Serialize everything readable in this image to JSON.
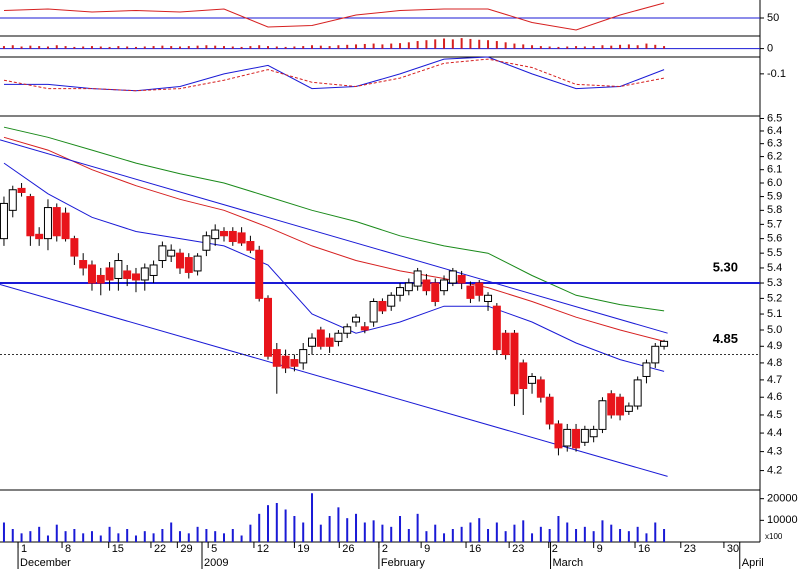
{
  "chart_data": {
    "type": "candlestick",
    "xlim": [
      -0.45,
      85.9
    ],
    "xticks": [
      {
        "value": 1.6,
        "label": "1"
      },
      {
        "value": 6.6,
        "label": "8"
      },
      {
        "value": 11.9,
        "label": "15"
      },
      {
        "value": 16.7,
        "label": "22"
      },
      {
        "value": 19.7,
        "label": "29"
      },
      {
        "value": 23.2,
        "label": "5"
      },
      {
        "value": 28.4,
        "label": "12"
      },
      {
        "value": 33.0,
        "label": "19"
      },
      {
        "value": 38.1,
        "label": "26"
      },
      {
        "value": 42.6,
        "label": "2"
      },
      {
        "value": 47.4,
        "label": "9"
      },
      {
        "value": 52.5,
        "label": "16"
      },
      {
        "value": 57.4,
        "label": "23"
      },
      {
        "value": 61.9,
        "label": "2"
      },
      {
        "value": 67.0,
        "label": "9"
      },
      {
        "value": 71.7,
        "label": "16"
      },
      {
        "value": 76.9,
        "label": "23"
      },
      {
        "value": 81.8,
        "label": "30"
      }
    ],
    "months": [
      {
        "value": 1.6,
        "label": "December"
      },
      {
        "value": 22.5,
        "label": "2009"
      },
      {
        "value": 42.6,
        "label": "February"
      },
      {
        "value": 62.1,
        "label": "March"
      },
      {
        "value": 83.6,
        "label": "April"
      }
    ],
    "price": {
      "log": true,
      "ylim": [
        4.1,
        6.52
      ],
      "yticks": [
        4.2,
        4.3,
        4.4,
        4.5,
        4.6,
        4.7,
        4.8,
        4.9,
        {
          "value": 5,
          "label": "5.0"
        },
        5.1,
        5.2,
        5.3,
        5.4,
        5.5,
        5.6,
        5.7,
        5.8,
        5.9,
        {
          "value": 6,
          "label": "6.0"
        },
        6.1,
        6.2,
        6.3,
        6.4,
        6.5
      ],
      "up_color": "#ffffff",
      "down_color": "#e8141b",
      "open": [
        5.6,
        5.8,
        5.96,
        5.9,
        5.63,
        5.6,
        5.82,
        5.78,
        5.6,
        5.45,
        5.42,
        5.35,
        5.4,
        5.33,
        5.38,
        5.36,
        5.32,
        5.35,
        5.45,
        5.48,
        5.5,
        5.47,
        5.38,
        5.52,
        5.6,
        5.65,
        5.65,
        5.64,
        5.58,
        5.52,
        5.2,
        4.88,
        4.84,
        4.82,
        4.8,
        4.9,
        5.0,
        4.95,
        4.93,
        4.98,
        5.05,
        5.02,
        5.05,
        5.18,
        5.15,
        5.22,
        5.25,
        5.28,
        5.32,
        5.3,
        5.25,
        5.3,
        5.35,
        5.28,
        5.3,
        5.18,
        5.15,
        4.98,
        4.98,
        4.8,
        4.68,
        4.7,
        4.6,
        4.45,
        4.33,
        4.42,
        4.35,
        4.38,
        4.42,
        4.62,
        4.6,
        4.52,
        4.55,
        4.72,
        4.8,
        4.9
      ],
      "high": [
        5.9,
        5.98,
        6.0,
        5.92,
        5.68,
        5.88,
        5.85,
        5.82,
        5.62,
        5.5,
        5.45,
        5.4,
        5.44,
        5.5,
        5.42,
        5.4,
        5.43,
        5.45,
        5.58,
        5.56,
        5.53,
        5.5,
        5.5,
        5.65,
        5.7,
        5.68,
        5.68,
        5.68,
        5.62,
        5.55,
        5.22,
        4.92,
        4.88,
        4.85,
        4.92,
        4.98,
        5.02,
        4.98,
        5.0,
        5.04,
        5.1,
        5.05,
        5.2,
        5.2,
        5.24,
        5.3,
        5.33,
        5.4,
        5.36,
        5.33,
        5.35,
        5.4,
        5.38,
        5.31,
        5.32,
        5.24,
        5.17,
        5.0,
        5.0,
        4.82,
        4.74,
        4.72,
        4.62,
        4.47,
        4.45,
        4.45,
        4.44,
        4.44,
        4.6,
        4.64,
        4.62,
        4.57,
        4.72,
        4.82,
        4.92,
        4.94
      ],
      "low": [
        5.55,
        5.75,
        5.9,
        5.55,
        5.55,
        5.52,
        5.58,
        5.58,
        5.42,
        5.35,
        5.25,
        5.22,
        5.25,
        5.25,
        5.28,
        5.24,
        5.25,
        5.3,
        5.4,
        5.44,
        5.36,
        5.33,
        5.35,
        5.48,
        5.55,
        5.58,
        5.55,
        5.55,
        5.5,
        5.18,
        4.82,
        4.62,
        4.74,
        4.75,
        4.76,
        4.85,
        4.88,
        4.86,
        4.9,
        4.95,
        5.02,
        4.98,
        5.02,
        5.1,
        5.12,
        5.18,
        5.22,
        5.25,
        5.22,
        5.15,
        5.22,
        5.28,
        5.26,
        5.17,
        5.18,
        5.12,
        4.85,
        4.82,
        4.55,
        4.5,
        4.62,
        4.57,
        4.42,
        4.28,
        4.3,
        4.3,
        4.33,
        4.35,
        4.4,
        4.48,
        4.47,
        4.5,
        4.53,
        4.68,
        4.77,
        4.88
      ],
      "close": [
        5.85,
        5.95,
        5.93,
        5.62,
        5.6,
        5.82,
        5.62,
        5.6,
        5.48,
        5.4,
        5.3,
        5.3,
        5.32,
        5.45,
        5.33,
        5.32,
        5.4,
        5.42,
        5.55,
        5.52,
        5.4,
        5.37,
        5.48,
        5.62,
        5.66,
        5.62,
        5.58,
        5.57,
        5.52,
        5.2,
        4.84,
        4.78,
        4.77,
        4.78,
        4.88,
        4.95,
        4.9,
        4.9,
        4.98,
        5.02,
        5.08,
        5.0,
        5.18,
        5.12,
        5.22,
        5.27,
        5.3,
        5.38,
        5.25,
        5.18,
        5.32,
        5.38,
        5.3,
        5.2,
        5.22,
        5.22,
        4.88,
        4.85,
        4.62,
        4.65,
        4.72,
        4.6,
        4.45,
        4.32,
        4.42,
        4.32,
        4.42,
        4.42,
        4.58,
        4.5,
        4.5,
        4.55,
        4.7,
        4.8,
        4.9,
        4.93
      ],
      "ma": [
        {
          "color": "#1a1ad6",
          "x": [
            0,
            5,
            10,
            15,
            20,
            25,
            30,
            35,
            40,
            45,
            50,
            55,
            60,
            65,
            70,
            75
          ],
          "values": [
            6.15,
            5.92,
            5.75,
            5.65,
            5.6,
            5.55,
            5.42,
            5.1,
            4.98,
            5.05,
            5.15,
            5.15,
            5.05,
            4.92,
            4.82,
            4.75
          ]
        },
        {
          "color": "#d62020",
          "x": [
            0,
            5,
            10,
            15,
            20,
            25,
            30,
            35,
            40,
            45,
            50,
            55,
            60,
            65,
            70,
            75
          ],
          "values": [
            6.35,
            6.25,
            6.1,
            5.98,
            5.88,
            5.8,
            5.68,
            5.55,
            5.45,
            5.38,
            5.33,
            5.27,
            5.18,
            5.08,
            5.0,
            4.93
          ]
        },
        {
          "color": "#1a8a1a",
          "x": [
            0,
            5,
            10,
            15,
            20,
            25,
            30,
            35,
            40,
            45,
            50,
            55,
            60,
            65,
            70,
            75
          ],
          "values": [
            6.43,
            6.35,
            6.25,
            6.15,
            6.07,
            6.0,
            5.9,
            5.8,
            5.72,
            5.62,
            5.55,
            5.5,
            5.35,
            5.22,
            5.16,
            5.12
          ]
        }
      ],
      "trendlines": [
        {
          "color": "#1a1ad6",
          "x": [
            -0.45,
            75.4
          ],
          "values": [
            6.33,
            4.98
          ]
        },
        {
          "color": "#1a1ad6",
          "x": [
            -0.45,
            75.4
          ],
          "values": [
            5.29,
            4.17
          ]
        }
      ],
      "hlines": [
        {
          "value": 5.3,
          "label": "5.30",
          "color": "#1a1ad6",
          "dash": false
        },
        {
          "value": 4.85,
          "label": "4.85",
          "color": "#333333",
          "dash": true
        }
      ]
    },
    "volume": {
      "ylim": [
        0,
        24000
      ],
      "yticks": [
        10000,
        20000
      ],
      "unit_label": "x100",
      "color": "#1a1ad6",
      "values": [
        9000,
        6000,
        4000,
        5000,
        7000,
        3000,
        8000,
        5000,
        6000,
        4000,
        5000,
        3000,
        7000,
        4000,
        6000,
        3000,
        5000,
        4000,
        6000,
        9000,
        5000,
        4000,
        7000,
        6000,
        5000,
        4000,
        6000,
        3000,
        8000,
        13000,
        17000,
        18000,
        15000,
        12000,
        9000,
        22500,
        8000,
        12000,
        16000,
        11000,
        13000,
        9000,
        10000,
        8000,
        7000,
        12000,
        6000,
        13000,
        5000,
        8000,
        4000,
        6000,
        7000,
        9000,
        11000,
        6000,
        9000,
        5000,
        8000,
        10000,
        4000,
        7000,
        6000,
        12000,
        9000,
        6000,
        7000,
        5000,
        10000,
        8000,
        6000,
        5000,
        7000,
        4000,
        9000,
        6000
      ]
    },
    "rsi": {
      "ylim": [
        38,
        62
      ],
      "yticks": [
        50
      ],
      "tick_lines": true,
      "color": "#d62020",
      "x": [
        0,
        5,
        10,
        15,
        20,
        25,
        30,
        35,
        40,
        45,
        50,
        55,
        60,
        65,
        70,
        75
      ],
      "values": [
        55,
        56,
        54,
        55,
        54,
        56,
        44,
        45,
        52,
        55,
        56,
        56,
        47,
        42,
        52,
        60
      ]
    },
    "hist": {
      "ylim": [
        -0.02,
        0.03
      ],
      "yticks": [
        0
      ],
      "tick_lines": true,
      "color": "#d62020",
      "values": [
        0.006,
        0.008,
        0.005,
        0.007,
        0.006,
        0.005,
        0.008,
        0.006,
        0.004,
        0.005,
        0.006,
        0.005,
        0.004,
        0.006,
        0.005,
        0.004,
        0.005,
        0.006,
        0.007,
        0.006,
        0.005,
        0.006,
        0.007,
        0.008,
        0.007,
        0.006,
        0.005,
        0.004,
        0.006,
        0.008,
        0.006,
        0.005,
        0.004,
        0.005,
        0.006,
        0.008,
        0.007,
        0.006,
        0.008,
        0.009,
        0.01,
        0.011,
        0.012,
        0.01,
        0.012,
        0.013,
        0.015,
        0.018,
        0.02,
        0.022,
        0.024,
        0.022,
        0.025,
        0.023,
        0.021,
        0.02,
        0.018,
        0.015,
        0.012,
        0.01,
        0.008,
        0.006,
        0.005,
        0.004,
        0.005,
        0.006,
        0.005,
        0.006,
        0.008,
        0.007,
        0.009,
        0.01,
        0.008,
        0.012,
        0.009,
        0.006
      ]
    },
    "macd": {
      "ylim": [
        -0.3,
        -0.02
      ],
      "yticks": [
        -0.1
      ],
      "tick_lines": false,
      "lines": [
        {
          "color": "#1a1ad6",
          "dash": false,
          "x": [
            0,
            5,
            10,
            15,
            20,
            25,
            30,
            35,
            40,
            45,
            50,
            55,
            60,
            65,
            70,
            75
          ],
          "values": [
            -0.15,
            -0.15,
            -0.17,
            -0.18,
            -0.16,
            -0.1,
            -0.06,
            -0.17,
            -0.16,
            -0.1,
            -0.03,
            -0.02,
            -0.1,
            -0.17,
            -0.16,
            -0.08
          ]
        },
        {
          "color": "#d62020",
          "dash": true,
          "x": [
            0,
            5,
            10,
            15,
            20,
            25,
            30,
            35,
            40,
            45,
            50,
            55,
            60,
            65,
            70,
            75
          ],
          "values": [
            -0.13,
            -0.17,
            -0.17,
            -0.18,
            -0.17,
            -0.13,
            -0.08,
            -0.14,
            -0.16,
            -0.12,
            -0.05,
            -0.03,
            -0.07,
            -0.15,
            -0.16,
            -0.12
          ]
        }
      ]
    }
  }
}
